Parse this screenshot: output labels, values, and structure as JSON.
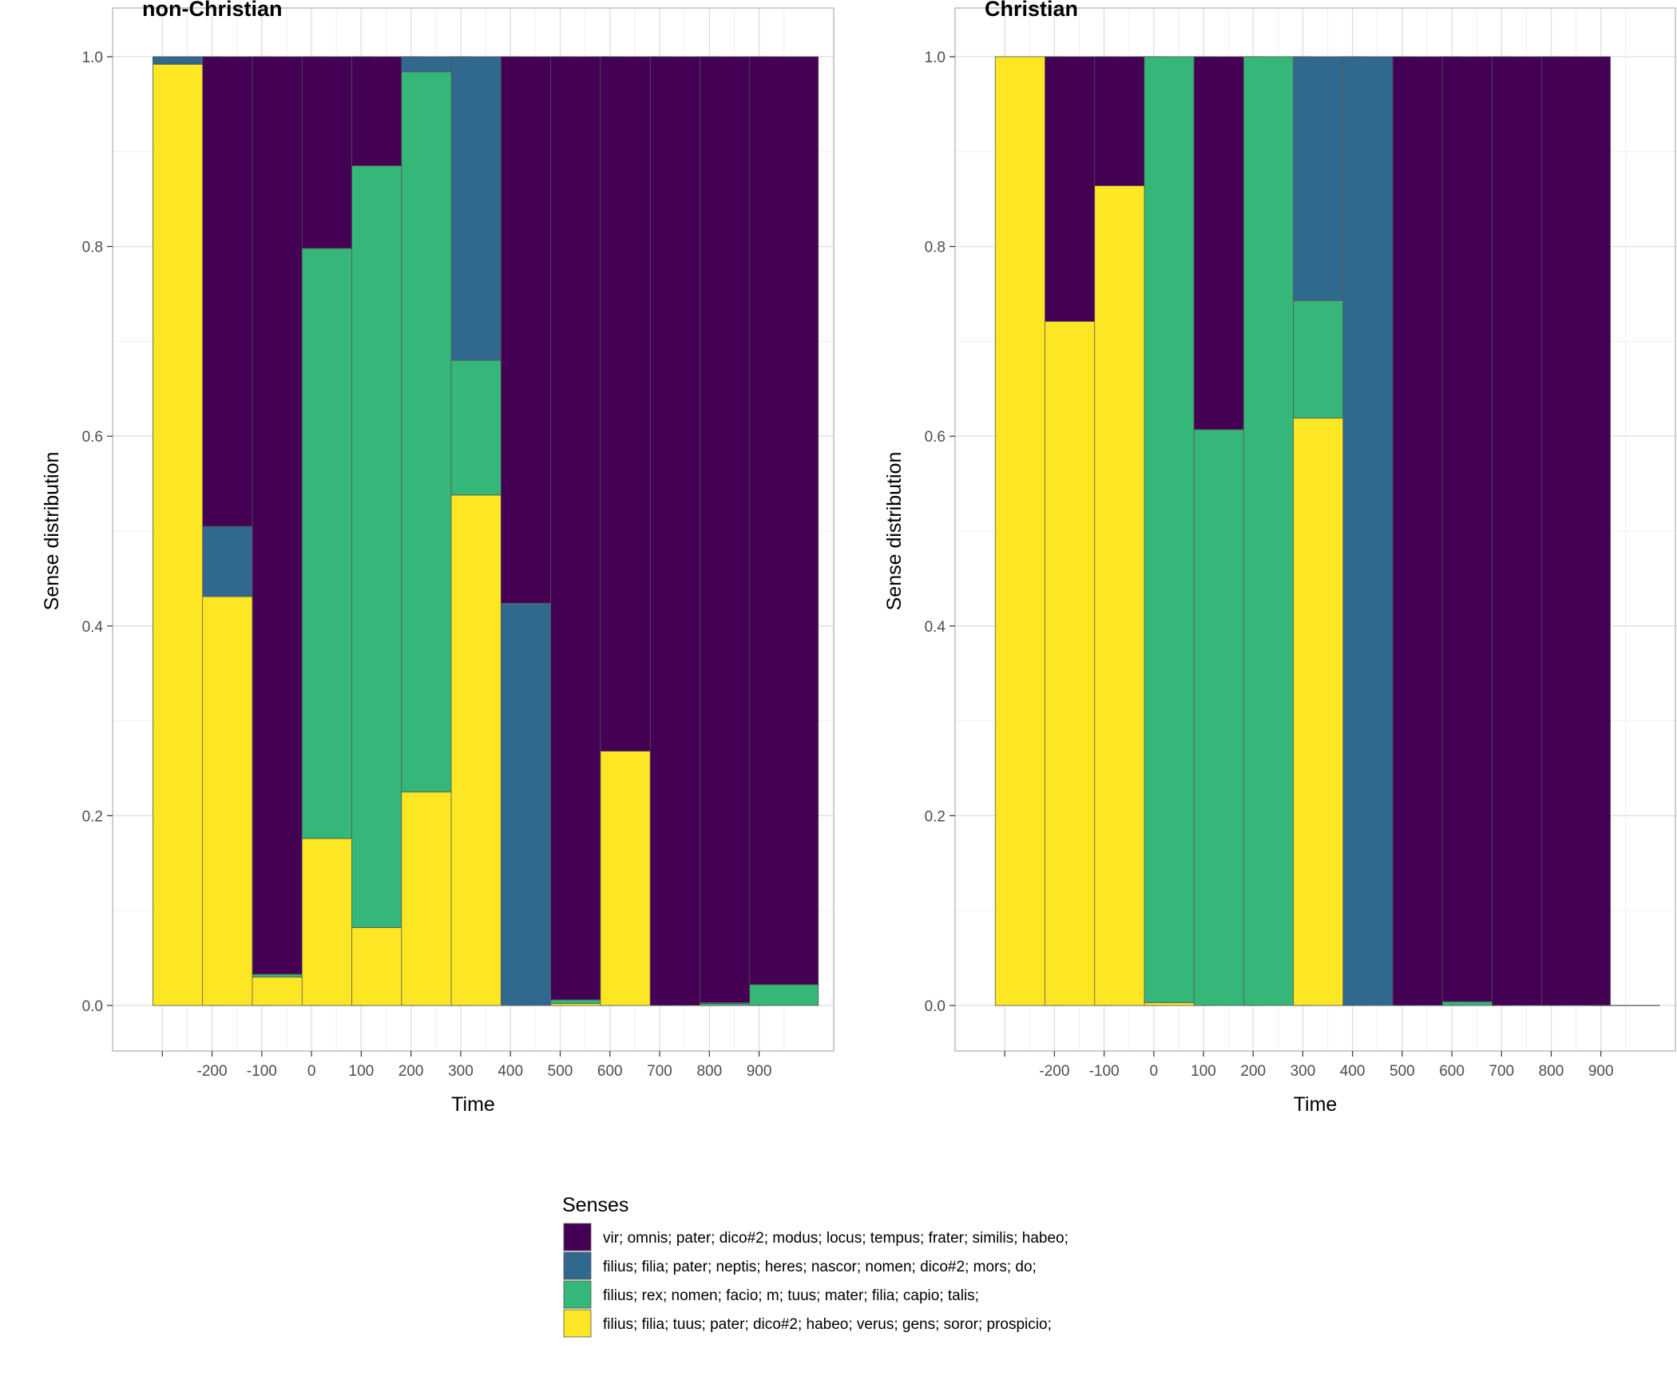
{
  "colors": {
    "s1": "#440154",
    "s2": "#31688E",
    "s3": "#35B779",
    "s4": "#FDE725",
    "panel_border": "#b3b3b3",
    "grid_major": "#dedede",
    "grid_minor": "#efefef",
    "bar_outline": "#555555"
  },
  "legend": {
    "title": "Senses",
    "items": [
      {
        "key": "s1",
        "label": "vir; omnis; pater; dico#2; modus; locus; tempus; frater; similis; habeo;"
      },
      {
        "key": "s2",
        "label": "filius; filia; pater; neptis; heres; nascor; nomen; dico#2; mors; do;"
      },
      {
        "key": "s3",
        "label": "filius; rex; nomen; facio; m; tuus; mater; filia; capio; talis;"
      },
      {
        "key": "s4",
        "label": "filius; filia; tuus; pater; dico#2; habeo; verus; gens; soror; prospicio;"
      }
    ]
  },
  "chart_data": [
    {
      "type": "bar",
      "stacked": true,
      "title": "non-Christian",
      "xlabel": "Time",
      "ylabel": "Sense distribution",
      "ylim": [
        0,
        1
      ],
      "yticks": [
        0.0,
        0.2,
        0.4,
        0.6,
        0.8,
        1.0
      ],
      "ytick_labels": [
        "0.0",
        "0.2",
        "0.4",
        "0.6",
        "0.8",
        "1.0"
      ],
      "xticks": [
        -200,
        -100,
        0,
        100,
        200,
        300,
        400,
        500,
        600,
        700,
        800,
        900
      ],
      "x": [
        -250,
        -150,
        -50,
        50,
        150,
        250,
        350,
        450,
        550,
        650,
        750,
        850,
        950
      ],
      "grid": true,
      "legend_position": "bottom",
      "series": [
        {
          "key": "s4",
          "values": [
            0.992,
            0.431,
            0.03,
            0.176,
            0.082,
            0.225,
            0.538,
            0.0,
            0.002,
            0.268,
            0.0,
            0.0,
            0.0
          ]
        },
        {
          "key": "s3",
          "values": [
            0.0,
            0.0,
            0.003,
            0.622,
            0.803,
            0.759,
            0.142,
            0.0,
            0.004,
            0.0,
            0.0,
            0.002,
            0.022
          ]
        },
        {
          "key": "s2",
          "values": [
            0.008,
            0.074,
            0.0,
            0.0,
            0.0,
            0.016,
            0.32,
            0.424,
            0.0,
            0.0,
            0.0,
            0.001,
            0.0
          ]
        },
        {
          "key": "s1",
          "values": [
            0.0,
            0.495,
            0.967,
            0.202,
            0.115,
            0.0,
            0.0,
            0.576,
            0.994,
            0.732,
            1.0,
            0.997,
            0.978
          ]
        }
      ]
    },
    {
      "type": "bar",
      "stacked": true,
      "title": "Christian",
      "xlabel": "Time",
      "ylabel": "Sense distribution",
      "ylim": [
        0,
        1
      ],
      "yticks": [
        0.0,
        0.2,
        0.4,
        0.6,
        0.8,
        1.0
      ],
      "ytick_labels": [
        "0.0",
        "0.2",
        "0.4",
        "0.6",
        "0.8",
        "1.0"
      ],
      "xticks": [
        -200,
        -100,
        0,
        100,
        200,
        300,
        400,
        500,
        600,
        700,
        800,
        900
      ],
      "x": [
        -250,
        -150,
        -50,
        50,
        150,
        250,
        350,
        450,
        550,
        650,
        750,
        850,
        950
      ],
      "grid": true,
      "legend_position": "bottom",
      "series": [
        {
          "key": "s4",
          "values": [
            1.0,
            0.721,
            0.864,
            0.003,
            0.0,
            0.0,
            0.619,
            0.0,
            0.0,
            0.0,
            0.0,
            0.0,
            0.0
          ]
        },
        {
          "key": "s3",
          "values": [
            0.0,
            0.0,
            0.0,
            0.997,
            0.607,
            1.0,
            0.124,
            0.0,
            0.0,
            0.004,
            0.0,
            0.0,
            0.0
          ]
        },
        {
          "key": "s2",
          "values": [
            0.0,
            0.0,
            0.0,
            0.0,
            0.0,
            0.0,
            0.257,
            1.0,
            0.0,
            0.0,
            0.0,
            0.0,
            0.0
          ]
        },
        {
          "key": "s1",
          "values": [
            0.0,
            0.279,
            0.136,
            0.0,
            0.393,
            0.0,
            0.0,
            0.0,
            1.0,
            0.996,
            1.0,
            1.0,
            0.0
          ]
        }
      ]
    }
  ]
}
